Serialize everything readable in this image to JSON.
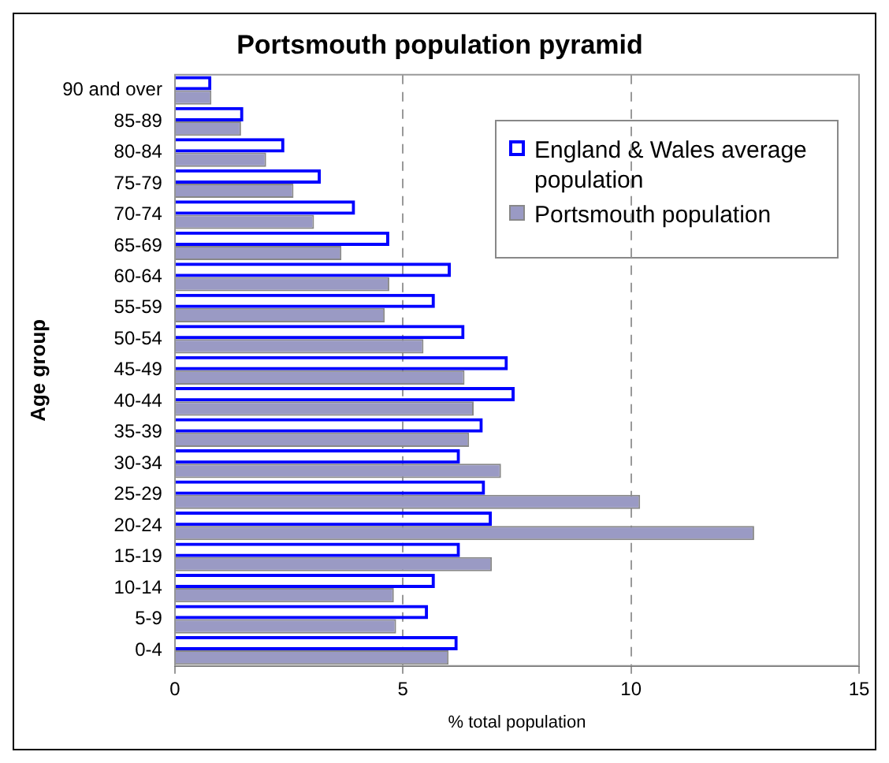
{
  "chart_data": {
    "type": "bar",
    "orientation": "horizontal",
    "title": "Portsmouth population pyramid",
    "xlabel": "% total population",
    "ylabel": "Age group",
    "categories": [
      "90 and over",
      "85-89",
      "80-84",
      "75-79",
      "70-74",
      "65-69",
      "60-64",
      "55-59",
      "50-54",
      "45-49",
      "40-44",
      "35-39",
      "30-34",
      "25-29",
      "20-24",
      "15-19",
      "10-14",
      "5-9",
      "0-4"
    ],
    "series": [
      {
        "name": "England & Wales average population",
        "color": "#0000ff",
        "values": [
          0.8,
          1.5,
          2.4,
          3.2,
          3.95,
          4.7,
          6.05,
          5.7,
          6.35,
          7.3,
          7.45,
          6.75,
          6.25,
          6.8,
          6.95,
          6.25,
          5.7,
          5.55,
          6.2
        ]
      },
      {
        "name": "Portsmouth population",
        "color": "#9a9ac4",
        "values": [
          0.8,
          1.45,
          2.0,
          2.6,
          3.05,
          3.65,
          4.7,
          4.6,
          5.45,
          6.35,
          6.55,
          6.45,
          7.15,
          10.2,
          12.7,
          6.95,
          4.8,
          4.85,
          6.0
        ]
      }
    ],
    "xlim": [
      0,
      15
    ],
    "xticks": [
      0,
      5,
      10,
      15
    ],
    "grid": "x",
    "legend": "top right"
  }
}
